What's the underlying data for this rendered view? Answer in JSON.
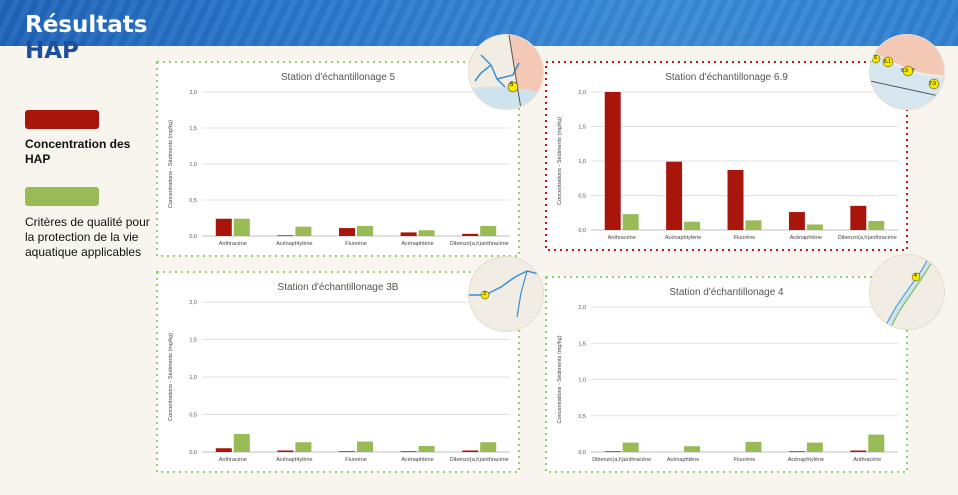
{
  "page": {
    "title_line1": "Résultats",
    "title_line2": "HAP"
  },
  "legend": {
    "items": [
      {
        "label": "Concentration des HAP",
        "color": "#a8150a"
      },
      {
        "label": "Critères de qualité pour la protection de la vie aquatique applicables",
        "color": "#99bb55"
      }
    ]
  },
  "colors": {
    "concentration": "#a8150a",
    "criteria": "#99bb55",
    "banner": "#2b78cc",
    "title_hap": "#1d4f9c"
  },
  "chart_data": [
    {
      "type": "bar",
      "title": "Station d'échantillonage 5",
      "ylabel": "Concentrations - Sédiments (mg/kg)",
      "ylim": [
        0,
        2.0
      ],
      "ticks": [
        "0,0",
        "0,5",
        "1,0",
        "1,5",
        "2,0"
      ],
      "categories": [
        "Anthracène",
        "Acénaphtylène",
        "Fluorène",
        "Acénaphtène",
        "Dibenzo(a,h)anthracène"
      ],
      "series": [
        {
          "values": [
            0.24,
            0.01,
            0.11,
            0.05,
            0.03
          ]
        },
        {
          "values": [
            0.24,
            0.13,
            0.14,
            0.08,
            0.14
          ]
        }
      ],
      "border": "green",
      "map": {
        "label": "5",
        "type": "river-fork"
      }
    },
    {
      "type": "bar",
      "title": "Station d'échantillonage 6.9",
      "ylabel": "Concentrations - Sédiments (mg/kg)",
      "ylim": [
        0,
        2.0
      ],
      "ticks": [
        "0,0",
        "0,5",
        "1,0",
        "1,5",
        "2,0"
      ],
      "categories": [
        "Anthracène",
        "Acénaphtylène",
        "Fluorène",
        "Acénaphtène",
        "Dibenzo(a,h)anthracène"
      ],
      "series": [
        {
          "values": [
            2.0,
            0.99,
            0.87,
            0.26,
            0.35
          ]
        },
        {
          "values": [
            0.23,
            0.12,
            0.14,
            0.08,
            0.13
          ]
        }
      ],
      "border": "red",
      "map": {
        "label": "6.9",
        "labels": [
          "6",
          "6.1",
          "6.9",
          "7",
          "7.9"
        ],
        "type": "coast"
      }
    },
    {
      "type": "bar",
      "title": "Station d'échantillonage 3B",
      "ylabel": "Concentrations - Sédiments (mg/kg)",
      "ylim": [
        0,
        2.0
      ],
      "ticks": [
        "0,0",
        "0,5",
        "1,0",
        "1,5",
        "2,0"
      ],
      "categories": [
        "Anthracène",
        "Acénaphtylène",
        "Fluorène",
        "Acénaphtène",
        "Dibenzo(a,h)anthracène"
      ],
      "series": [
        {
          "values": [
            0.05,
            0.02,
            0.01,
            0.01,
            0.02
          ]
        },
        {
          "values": [
            0.24,
            0.13,
            0.14,
            0.08,
            0.13
          ]
        }
      ],
      "border": "green",
      "map": {
        "label": "3",
        "type": "river"
      }
    },
    {
      "type": "bar",
      "title": "Station d'échantillonage 4",
      "ylabel": "Concentrations - Sédiments (mg/kg)",
      "ylim": [
        0,
        2.0
      ],
      "ticks": [
        "0,0",
        "0,5",
        "1,0",
        "1,5",
        "2,0"
      ],
      "categories": [
        "Dibenzo(a,h)anthracène",
        "Acénaphtène",
        "Fluorène",
        "Acénaphtylène",
        "Anthracène"
      ],
      "series": [
        {
          "values": [
            0.01,
            0.0,
            0.0,
            0.01,
            0.02
          ]
        },
        {
          "values": [
            0.13,
            0.08,
            0.14,
            0.13,
            0.24
          ]
        }
      ],
      "border": "green",
      "map": {
        "label": "4",
        "type": "stream"
      }
    }
  ]
}
